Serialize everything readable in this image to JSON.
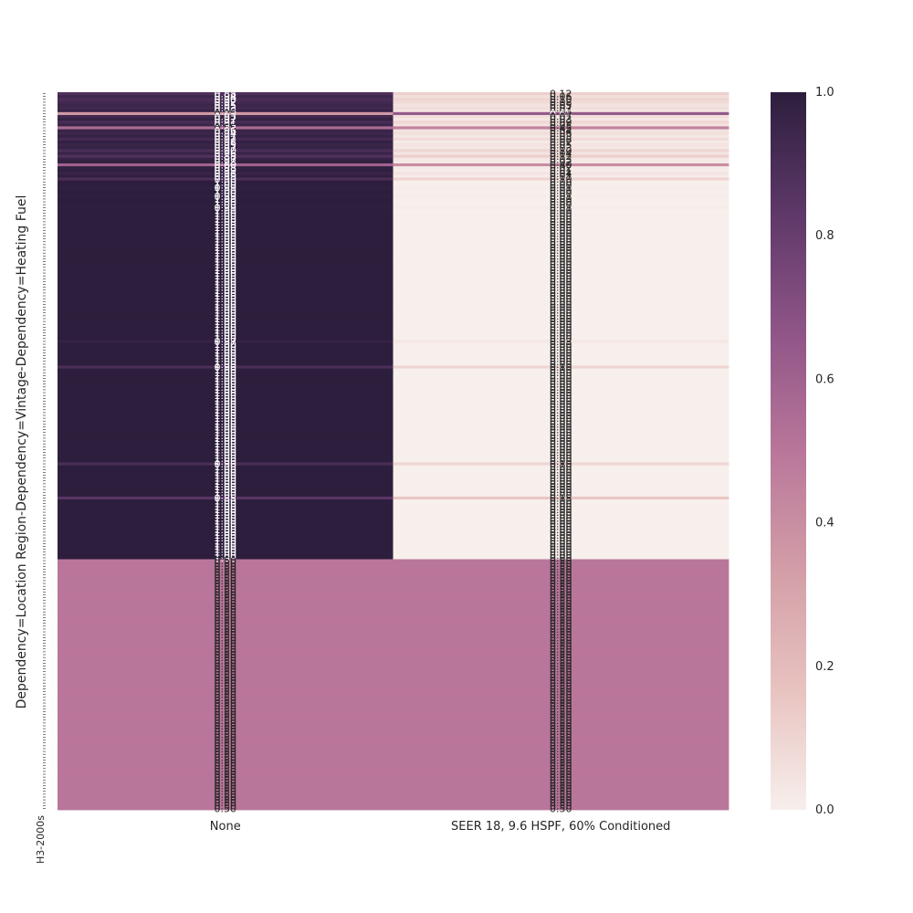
{
  "chart_data": {
    "type": "heatmap",
    "title": "",
    "xlabel": "",
    "ylabel": "Dependency=Location Region-Dependency=Vintage-Dependency=Heating Fuel",
    "categories": [
      "None",
      "SEER 18, 9.6 HSPF, 60% Conditioned"
    ],
    "y_tick_labels_visible": [
      "H3-2000s"
    ],
    "colorbar": {
      "range": [
        0.0,
        1.0
      ],
      "ticks": [
        "0.0",
        "0.2",
        "0.4",
        "0.6",
        "0.8",
        "1.0"
      ],
      "colors": [
        "#f7efec",
        "#e8c3c0",
        "#d39ea7",
        "#b9769a",
        "#8f5587",
        "#5d3868",
        "#2d1e3d"
      ]
    },
    "grid": false,
    "row_groups": [
      {
        "rows": 1,
        "values": [
          0.88,
          0.12
        ]
      },
      {
        "rows": 1,
        "values": [
          0.94,
          0.06
        ]
      },
      {
        "rows": 1,
        "values": [
          0.9,
          0.1
        ]
      },
      {
        "rows": 1,
        "values": [
          0.92,
          0.08
        ]
      },
      {
        "rows": 1,
        "values": [
          0.95,
          0.05
        ]
      },
      {
        "rows": 1,
        "values": [
          0.93,
          0.07
        ]
      },
      {
        "rows": 1,
        "values": [
          0.96,
          0.04
        ]
      },
      {
        "rows": 1,
        "values": [
          0.35,
          0.65
        ]
      },
      {
        "rows": 1,
        "values": [
          0.93,
          0.07
        ]
      },
      {
        "rows": 1,
        "values": [
          0.97,
          0.03
        ]
      },
      {
        "rows": 1,
        "values": [
          0.91,
          0.09
        ]
      },
      {
        "rows": 1,
        "values": [
          0.95,
          0.05
        ]
      },
      {
        "rows": 1,
        "values": [
          0.55,
          0.45
        ]
      },
      {
        "rows": 1,
        "values": [
          0.96,
          0.04
        ]
      },
      {
        "rows": 1,
        "values": [
          0.94,
          0.06
        ]
      },
      {
        "rows": 1,
        "values": [
          0.97,
          0.03
        ]
      },
      {
        "rows": 1,
        "values": [
          0.92,
          0.08
        ]
      },
      {
        "rows": 1,
        "values": [
          0.98,
          0.02
        ]
      },
      {
        "rows": 1,
        "values": [
          0.95,
          0.05
        ]
      },
      {
        "rows": 1,
        "values": [
          0.97,
          0.03
        ]
      },
      {
        "rows": 1,
        "values": [
          0.9,
          0.1
        ]
      },
      {
        "rows": 1,
        "values": [
          0.96,
          0.04
        ]
      },
      {
        "rows": 1,
        "values": [
          0.88,
          0.12
        ]
      },
      {
        "rows": 1,
        "values": [
          0.97,
          0.03
        ]
      },
      {
        "rows": 1,
        "values": [
          0.98,
          0.02
        ]
      },
      {
        "rows": 1,
        "values": [
          0.6,
          0.4
        ]
      },
      {
        "rows": 1,
        "values": [
          0.98,
          0.02
        ]
      },
      {
        "rows": 1,
        "values": [
          0.99,
          0.01
        ]
      },
      {
        "rows": 1,
        "values": [
          0.96,
          0.04
        ]
      },
      {
        "rows": 1,
        "values": [
          0.99,
          0.01
        ]
      },
      {
        "rows": 1,
        "values": [
          0.9,
          0.1
        ]
      },
      {
        "rows": 1,
        "values": [
          1.0,
          0.0
        ]
      },
      {
        "rows": 1,
        "values": [
          1.0,
          0.0
        ]
      },
      {
        "rows": 1,
        "values": [
          0.99,
          0.01
        ]
      },
      {
        "rows": 1,
        "values": [
          1.0,
          0.0
        ]
      },
      {
        "rows": 1,
        "values": [
          1.0,
          0.0
        ]
      },
      {
        "rows": 1,
        "values": [
          0.99,
          0.01
        ]
      },
      {
        "rows": 1,
        "values": [
          1.0,
          0.0
        ]
      },
      {
        "rows": 1,
        "values": [
          1.0,
          0.0
        ]
      },
      {
        "rows": 1,
        "values": [
          1.0,
          0.0
        ]
      },
      {
        "rows": 1,
        "values": [
          0.99,
          0.01
        ]
      },
      {
        "rows": 1,
        "values": [
          1.0,
          0.0
        ]
      },
      {
        "rows": 1,
        "values": [
          1.0,
          0.0
        ]
      },
      {
        "rows": 1,
        "values": [
          1.0,
          0.0
        ]
      },
      {
        "rows": 1,
        "values": [
          1.0,
          0.0
        ]
      },
      {
        "rows": 1,
        "values": [
          1.0,
          0.0
        ]
      },
      {
        "rows": 1,
        "values": [
          1.0,
          0.0
        ]
      },
      {
        "rows": 1,
        "values": [
          1.0,
          0.0
        ]
      },
      {
        "rows": 1,
        "values": [
          1.0,
          0.0
        ]
      },
      {
        "rows": 1,
        "values": [
          1.0,
          0.0
        ]
      },
      {
        "rows": 1,
        "values": [
          1.0,
          0.0
        ]
      },
      {
        "rows": 1,
        "values": [
          1.0,
          0.0
        ]
      },
      {
        "rows": 1,
        "values": [
          1.0,
          0.0
        ]
      },
      {
        "rows": 1,
        "values": [
          1.0,
          0.0
        ]
      },
      {
        "rows": 1,
        "values": [
          1.0,
          0.0
        ]
      },
      {
        "rows": 1,
        "values": [
          1.0,
          0.0
        ]
      },
      {
        "rows": 1,
        "values": [
          1.0,
          0.0
        ]
      },
      {
        "rows": 1,
        "values": [
          1.0,
          0.0
        ]
      },
      {
        "rows": 1,
        "values": [
          1.0,
          0.0
        ]
      },
      {
        "rows": 1,
        "values": [
          1.0,
          0.0
        ]
      },
      {
        "rows": 1,
        "values": [
          1.0,
          0.0
        ]
      },
      {
        "rows": 1,
        "values": [
          1.0,
          0.0
        ]
      },
      {
        "rows": 1,
        "values": [
          1.0,
          0.0
        ]
      },
      {
        "rows": 1,
        "values": [
          1.0,
          0.0
        ]
      },
      {
        "rows": 1,
        "values": [
          1.0,
          0.0
        ]
      },
      {
        "rows": 1,
        "values": [
          1.0,
          0.0
        ]
      },
      {
        "rows": 1,
        "values": [
          1.0,
          0.0
        ]
      },
      {
        "rows": 1,
        "values": [
          1.0,
          0.0
        ]
      },
      {
        "rows": 1,
        "values": [
          1.0,
          0.0
        ]
      },
      {
        "rows": 1,
        "values": [
          1.0,
          0.0
        ]
      },
      {
        "rows": 1,
        "values": [
          1.0,
          0.0
        ]
      },
      {
        "rows": 1,
        "values": [
          1.0,
          0.0
        ]
      },
      {
        "rows": 1,
        "values": [
          1.0,
          0.0
        ]
      },
      {
        "rows": 1,
        "values": [
          1.0,
          0.0
        ]
      },
      {
        "rows": 1,
        "values": [
          1.0,
          0.0
        ]
      },
      {
        "rows": 1,
        "values": [
          1.0,
          0.0
        ]
      },
      {
        "rows": 1,
        "values": [
          1.0,
          0.0
        ]
      },
      {
        "rows": 1,
        "values": [
          1.0,
          0.0
        ]
      },
      {
        "rows": 1,
        "values": [
          1.0,
          0.0
        ]
      },
      {
        "rows": 1,
        "values": [
          1.0,
          0.0
        ]
      },
      {
        "rows": 1,
        "values": [
          1.0,
          0.0
        ]
      },
      {
        "rows": 1,
        "values": [
          1.0,
          0.0
        ]
      },
      {
        "rows": 1,
        "values": [
          1.0,
          0.0
        ]
      },
      {
        "rows": 1,
        "values": [
          1.0,
          0.0
        ]
      },
      {
        "rows": 1,
        "values": [
          1.0,
          0.0
        ]
      },
      {
        "rows": 1,
        "values": [
          1.0,
          0.0
        ]
      },
      {
        "rows": 1,
        "values": [
          1.0,
          0.0
        ]
      },
      {
        "rows": 1,
        "values": [
          0.97,
          0.03
        ]
      },
      {
        "rows": 1,
        "values": [
          1.0,
          0.0
        ]
      },
      {
        "rows": 1,
        "values": [
          1.0,
          0.0
        ]
      },
      {
        "rows": 1,
        "values": [
          1.0,
          0.0
        ]
      },
      {
        "rows": 1,
        "values": [
          1.0,
          0.0
        ]
      },
      {
        "rows": 1,
        "values": [
          1.0,
          0.0
        ]
      },
      {
        "rows": 1,
        "values": [
          1.0,
          0.0
        ]
      },
      {
        "rows": 1,
        "values": [
          1.0,
          0.0
        ]
      },
      {
        "rows": 1,
        "values": [
          1.0,
          0.0
        ]
      },
      {
        "rows": 1,
        "values": [
          0.9,
          0.1
        ]
      },
      {
        "rows": 1,
        "values": [
          1.0,
          0.0
        ]
      },
      {
        "rows": 1,
        "values": [
          1.0,
          0.0
        ]
      },
      {
        "rows": 1,
        "values": [
          1.0,
          0.0
        ]
      },
      {
        "rows": 1,
        "values": [
          1.0,
          0.0
        ]
      },
      {
        "rows": 1,
        "values": [
          1.0,
          0.0
        ]
      },
      {
        "rows": 1,
        "values": [
          1.0,
          0.0
        ]
      },
      {
        "rows": 1,
        "values": [
          1.0,
          0.0
        ]
      },
      {
        "rows": 1,
        "values": [
          1.0,
          0.0
        ]
      },
      {
        "rows": 1,
        "values": [
          1.0,
          0.0
        ]
      },
      {
        "rows": 1,
        "values": [
          1.0,
          0.0
        ]
      },
      {
        "rows": 1,
        "values": [
          1.0,
          0.0
        ]
      },
      {
        "rows": 1,
        "values": [
          1.0,
          0.0
        ]
      },
      {
        "rows": 1,
        "values": [
          1.0,
          0.0
        ]
      },
      {
        "rows": 1,
        "values": [
          1.0,
          0.0
        ]
      },
      {
        "rows": 1,
        "values": [
          1.0,
          0.0
        ]
      },
      {
        "rows": 1,
        "values": [
          1.0,
          0.0
        ]
      },
      {
        "rows": 1,
        "values": [
          1.0,
          0.0
        ]
      },
      {
        "rows": 1,
        "values": [
          1.0,
          0.0
        ]
      },
      {
        "rows": 1,
        "values": [
          1.0,
          0.0
        ]
      },
      {
        "rows": 1,
        "values": [
          1.0,
          0.0
        ]
      },
      {
        "rows": 1,
        "values": [
          1.0,
          0.0
        ]
      },
      {
        "rows": 1,
        "values": [
          1.0,
          0.0
        ]
      },
      {
        "rows": 1,
        "values": [
          1.0,
          0.0
        ]
      },
      {
        "rows": 1,
        "values": [
          1.0,
          0.0
        ]
      },
      {
        "rows": 1,
        "values": [
          1.0,
          0.0
        ]
      },
      {
        "rows": 1,
        "values": [
          1.0,
          0.0
        ]
      },
      {
        "rows": 1,
        "values": [
          1.0,
          0.0
        ]
      },
      {
        "rows": 1,
        "values": [
          1.0,
          0.0
        ]
      },
      {
        "rows": 1,
        "values": [
          1.0,
          0.0
        ]
      },
      {
        "rows": 1,
        "values": [
          1.0,
          0.0
        ]
      },
      {
        "rows": 1,
        "values": [
          1.0,
          0.0
        ]
      },
      {
        "rows": 1,
        "values": [
          1.0,
          0.0
        ]
      },
      {
        "rows": 1,
        "values": [
          1.0,
          0.0
        ]
      },
      {
        "rows": 1,
        "values": [
          0.9,
          0.1
        ]
      },
      {
        "rows": 1,
        "values": [
          1.0,
          0.0
        ]
      },
      {
        "rows": 1,
        "values": [
          1.0,
          0.0
        ]
      },
      {
        "rows": 1,
        "values": [
          1.0,
          0.0
        ]
      },
      {
        "rows": 1,
        "values": [
          1.0,
          0.0
        ]
      },
      {
        "rows": 1,
        "values": [
          1.0,
          0.0
        ]
      },
      {
        "rows": 1,
        "values": [
          1.0,
          0.0
        ]
      },
      {
        "rows": 1,
        "values": [
          1.0,
          0.0
        ]
      },
      {
        "rows": 1,
        "values": [
          1.0,
          0.0
        ]
      },
      {
        "rows": 1,
        "values": [
          1.0,
          0.0
        ]
      },
      {
        "rows": 1,
        "values": [
          1.0,
          0.0
        ]
      },
      {
        "rows": 1,
        "values": [
          1.0,
          0.0
        ]
      },
      {
        "rows": 1,
        "values": [
          0.85,
          0.15
        ]
      },
      {
        "rows": 1,
        "values": [
          1.0,
          0.0
        ]
      },
      {
        "rows": 1,
        "values": [
          1.0,
          0.0
        ]
      },
      {
        "rows": 1,
        "values": [
          1.0,
          0.0
        ]
      },
      {
        "rows": 1,
        "values": [
          1.0,
          0.0
        ]
      },
      {
        "rows": 1,
        "values": [
          1.0,
          0.0
        ]
      },
      {
        "rows": 1,
        "values": [
          1.0,
          0.0
        ]
      },
      {
        "rows": 1,
        "values": [
          1.0,
          0.0
        ]
      },
      {
        "rows": 1,
        "values": [
          1.0,
          0.0
        ]
      },
      {
        "rows": 1,
        "values": [
          1.0,
          0.0
        ]
      },
      {
        "rows": 1,
        "values": [
          1.0,
          0.0
        ]
      },
      {
        "rows": 1,
        "values": [
          1.0,
          0.0
        ]
      },
      {
        "rows": 1,
        "values": [
          1.0,
          0.0
        ]
      },
      {
        "rows": 1,
        "values": [
          1.0,
          0.0
        ]
      },
      {
        "rows": 1,
        "values": [
          1.0,
          0.0
        ]
      },
      {
        "rows": 1,
        "values": [
          1.0,
          0.0
        ]
      },
      {
        "rows": 1,
        "values": [
          1.0,
          0.0
        ]
      },
      {
        "rows": 1,
        "values": [
          1.0,
          0.0
        ]
      },
      {
        "rows": 1,
        "values": [
          1.0,
          0.0
        ]
      },
      {
        "rows": 1,
        "values": [
          1.0,
          0.0
        ]
      },
      {
        "rows": 1,
        "values": [
          1.0,
          0.0
        ]
      },
      {
        "rows": 1,
        "values": [
          1.0,
          0.0
        ]
      },
      {
        "rows": 88,
        "values": [
          0.5,
          0.5
        ]
      }
    ]
  }
}
